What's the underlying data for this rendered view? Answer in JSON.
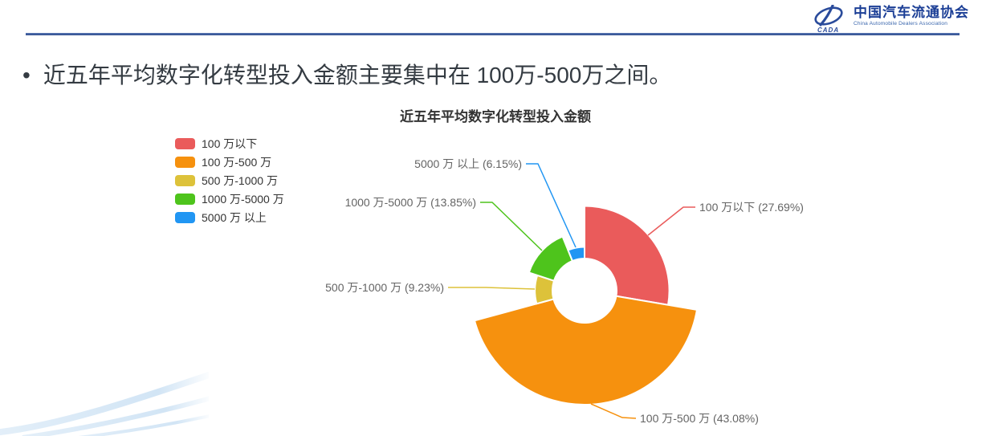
{
  "logo": {
    "org_name_cn": "中国汽车流通协会",
    "org_name_en": "China Automobile Dealers Association",
    "mark_text": "CADA",
    "brand_color": "#2a4b9b"
  },
  "bullet": {
    "marker": "•",
    "text": "近五年平均数字化转型投入金额主要集中在 100万-500万之间。"
  },
  "chart_data": {
    "type": "pie",
    "variant": "nightingale-rose",
    "title": "近五年平均数字化转型投入金额",
    "legend_position": "top-left",
    "unit": "percent",
    "slices": [
      {
        "label": "100 万以下",
        "value": 27.69,
        "color": "#ea5b5b",
        "callout": "100 万以下 (27.69%)"
      },
      {
        "label": "100 万-500 万",
        "value": 43.08,
        "color": "#f6910e",
        "callout": "100 万-500 万 (43.08%)"
      },
      {
        "label": "500 万-1000 万",
        "value": 9.23,
        "color": "#ddc23a",
        "callout": "500 万-1000 万 (9.23%)"
      },
      {
        "label": "1000 万-5000 万",
        "value": 13.85,
        "color": "#4ec41c",
        "callout": "1000 万-5000 万 (13.85%)"
      },
      {
        "label": "5000 万 以上",
        "value": 6.15,
        "color": "#2196f3",
        "callout": "5000 万 以上 (6.15%)"
      }
    ]
  }
}
